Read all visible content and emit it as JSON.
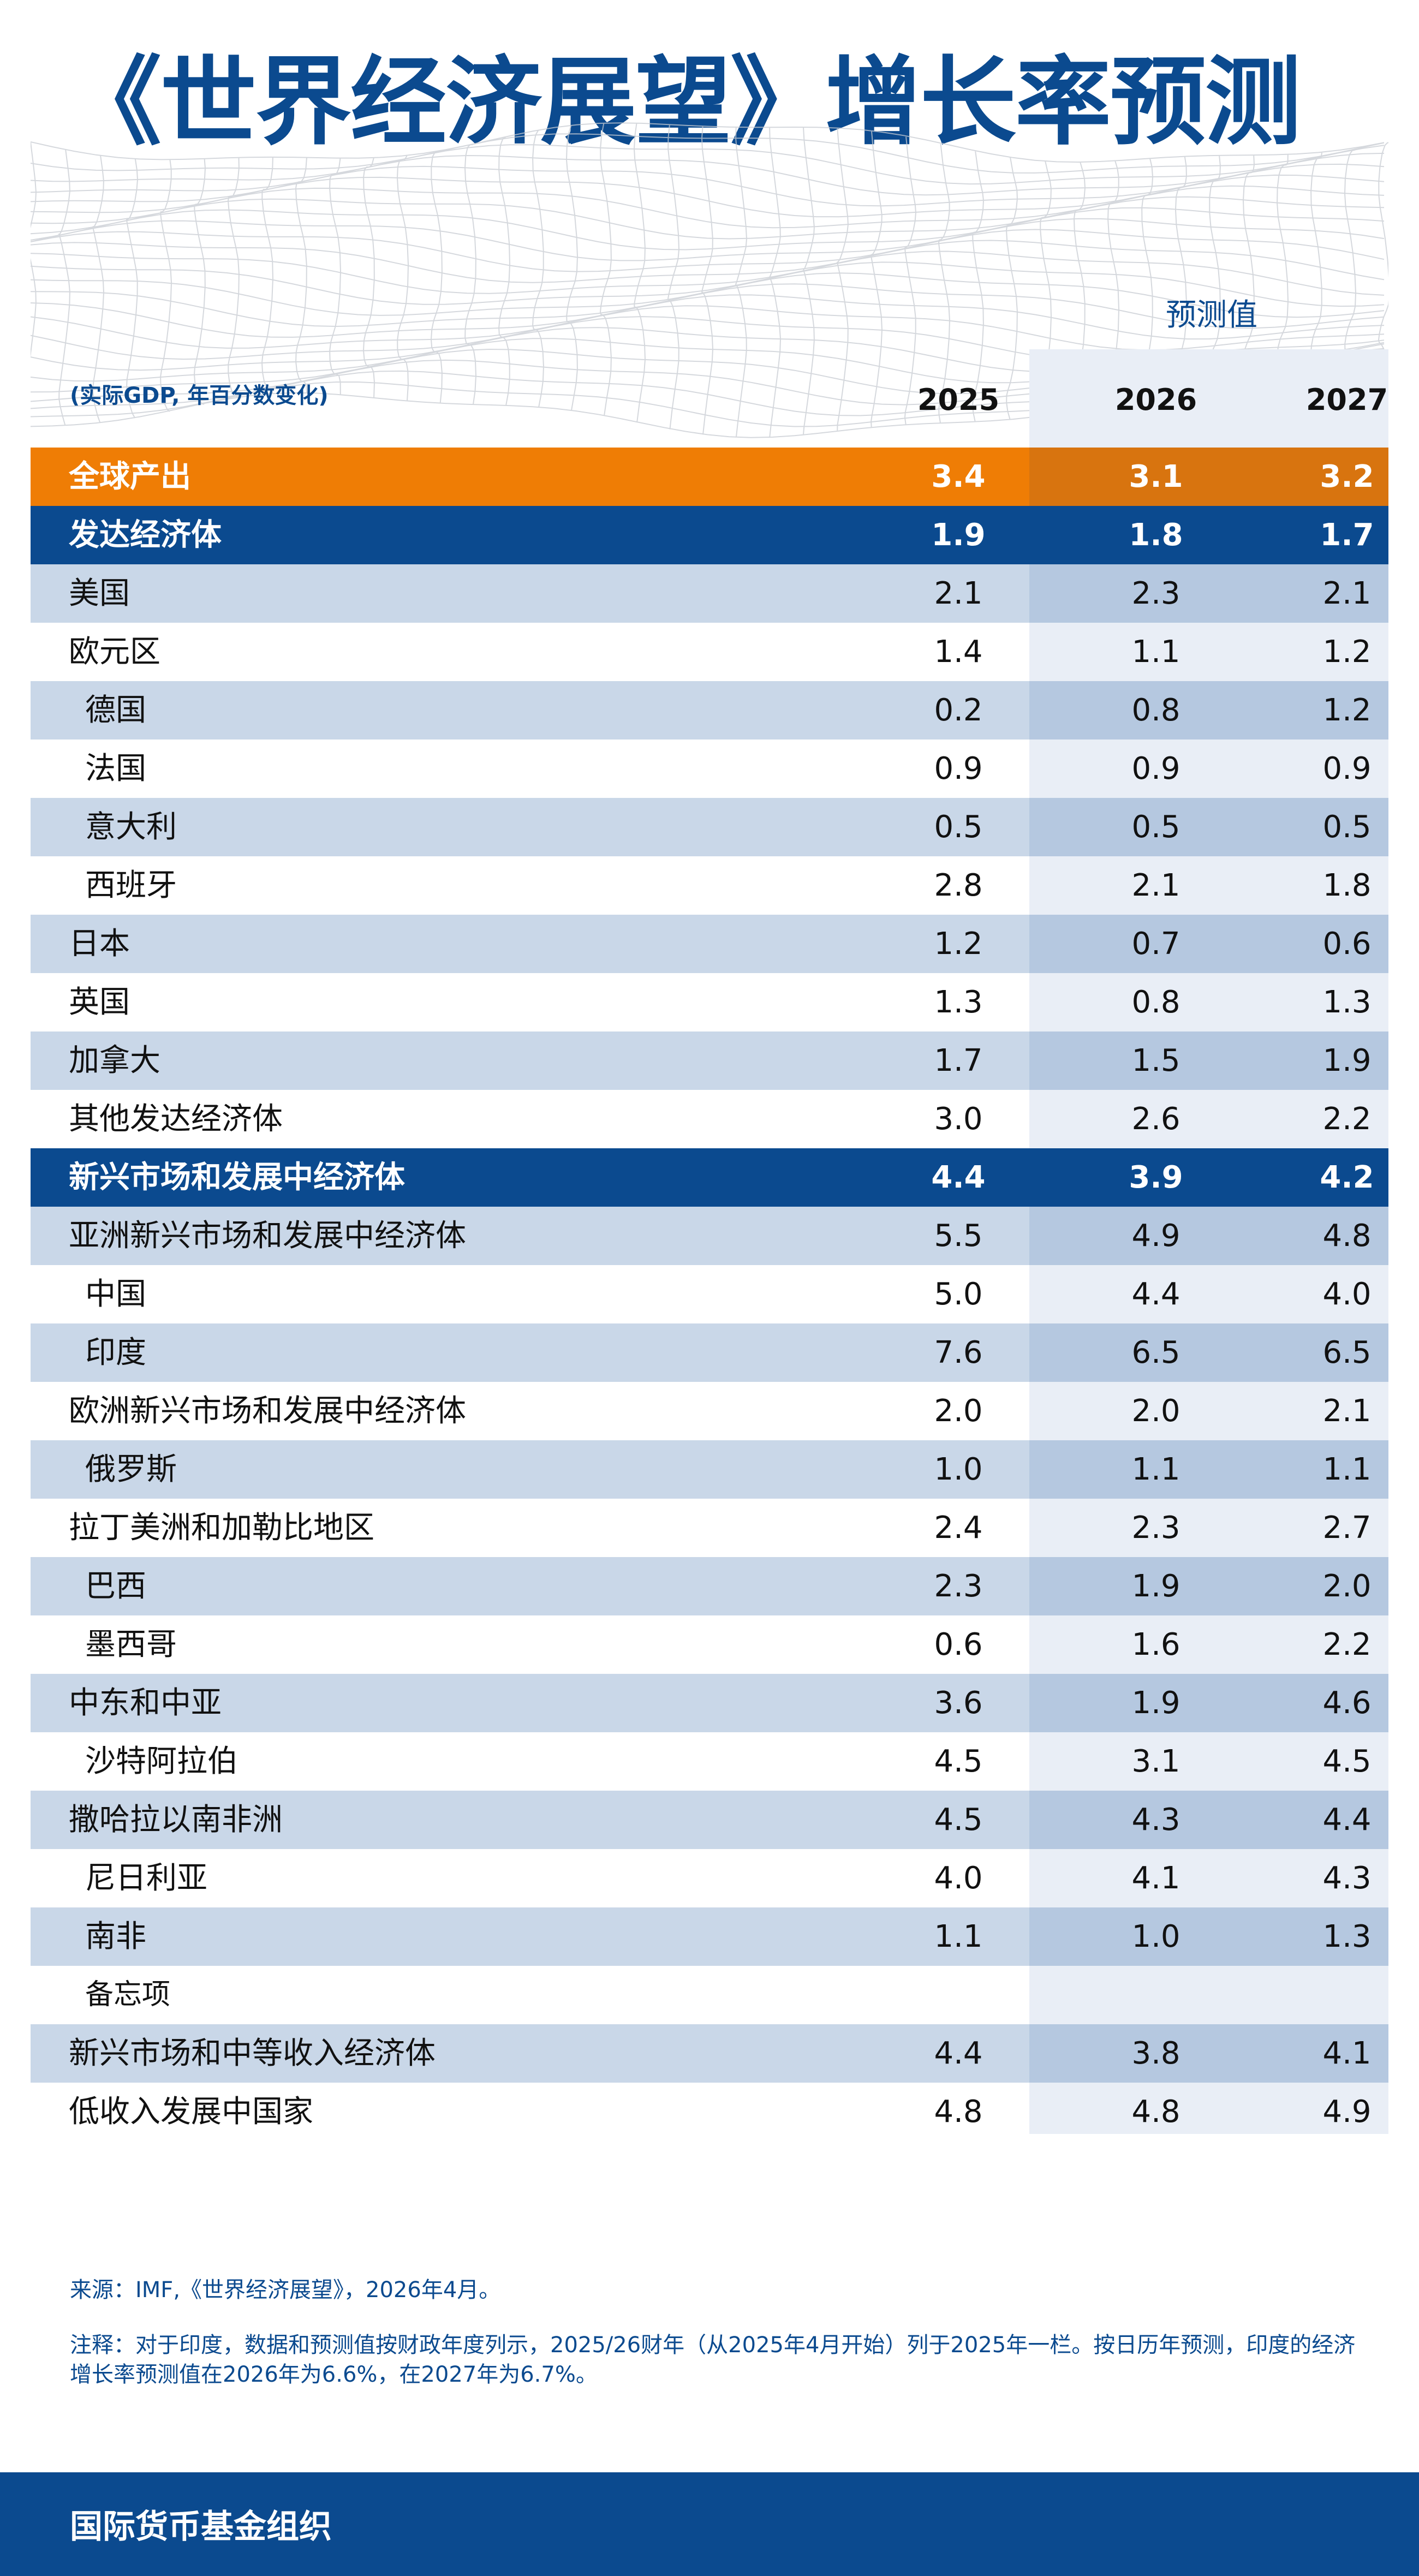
{
  "title": "《世界经济展望》增长率预测",
  "header": {
    "forecast_label": "预测值",
    "unit_note": "(实际GDP, 年百分数变化)",
    "years": [
      "2025",
      "2026",
      "2027"
    ]
  },
  "rows": [
    {
      "label": "全球产出",
      "values": [
        "3.4",
        "3.1",
        "3.2"
      ],
      "kind": "world",
      "indent": 0
    },
    {
      "label": "发达经济体",
      "values": [
        "1.9",
        "1.8",
        "1.7"
      ],
      "kind": "group",
      "indent": 0
    },
    {
      "label": "美国",
      "values": [
        "2.1",
        "2.3",
        "2.1"
      ],
      "kind": "shaded",
      "indent": 0
    },
    {
      "label": "欧元区",
      "values": [
        "1.4",
        "1.1",
        "1.2"
      ],
      "kind": "plain",
      "indent": 0
    },
    {
      "label": "德国",
      "values": [
        "0.2",
        "0.8",
        "1.2"
      ],
      "kind": "shaded",
      "indent": 1
    },
    {
      "label": "法国",
      "values": [
        "0.9",
        "0.9",
        "0.9"
      ],
      "kind": "plain",
      "indent": 1
    },
    {
      "label": "意大利",
      "values": [
        "0.5",
        "0.5",
        "0.5"
      ],
      "kind": "shaded",
      "indent": 1
    },
    {
      "label": "西班牙",
      "values": [
        "2.8",
        "2.1",
        "1.8"
      ],
      "kind": "plain",
      "indent": 1
    },
    {
      "label": "日本",
      "values": [
        "1.2",
        "0.7",
        "0.6"
      ],
      "kind": "shaded",
      "indent": 0
    },
    {
      "label": "英国",
      "values": [
        "1.3",
        "0.8",
        "1.3"
      ],
      "kind": "plain",
      "indent": 0
    },
    {
      "label": "加拿大",
      "values": [
        "1.7",
        "1.5",
        "1.9"
      ],
      "kind": "shaded",
      "indent": 0
    },
    {
      "label": "其他发达经济体",
      "values": [
        "3.0",
        "2.6",
        "2.2"
      ],
      "kind": "plain",
      "indent": 0
    },
    {
      "label": "新兴市场和发展中经济体",
      "values": [
        "4.4",
        "3.9",
        "4.2"
      ],
      "kind": "group",
      "indent": 0
    },
    {
      "label": "亚洲新兴市场和发展中经济体",
      "values": [
        "5.5",
        "4.9",
        "4.8"
      ],
      "kind": "shaded",
      "indent": 0
    },
    {
      "label": "中国",
      "values": [
        "5.0",
        "4.4",
        "4.0"
      ],
      "kind": "plain",
      "indent": 1
    },
    {
      "label": "印度",
      "values": [
        "7.6",
        "6.5",
        "6.5"
      ],
      "kind": "shaded",
      "indent": 1
    },
    {
      "label": "欧洲新兴市场和发展中经济体",
      "values": [
        "2.0",
        "2.0",
        "2.1"
      ],
      "kind": "plain",
      "indent": 0
    },
    {
      "label": "俄罗斯",
      "values": [
        "1.0",
        "1.1",
        "1.1"
      ],
      "kind": "shaded",
      "indent": 1
    },
    {
      "label": "拉丁美洲和加勒比地区",
      "values": [
        "2.4",
        "2.3",
        "2.7"
      ],
      "kind": "plain",
      "indent": 0
    },
    {
      "label": "巴西",
      "values": [
        "2.3",
        "1.9",
        "2.0"
      ],
      "kind": "shaded",
      "indent": 1
    },
    {
      "label": "墨西哥",
      "values": [
        "0.6",
        "1.6",
        "2.2"
      ],
      "kind": "plain",
      "indent": 1
    },
    {
      "label": "中东和中亚",
      "values": [
        "3.6",
        "1.9",
        "4.6"
      ],
      "kind": "shaded",
      "indent": 0
    },
    {
      "label": "沙特阿拉伯",
      "values": [
        "4.5",
        "3.1",
        "4.5"
      ],
      "kind": "plain",
      "indent": 1
    },
    {
      "label": "撒哈拉以南非洲",
      "values": [
        "4.5",
        "4.3",
        "4.4"
      ],
      "kind": "shaded",
      "indent": 0
    },
    {
      "label": "尼日利亚",
      "values": [
        "4.0",
        "4.1",
        "4.3"
      ],
      "kind": "plain",
      "indent": 1
    },
    {
      "label": "南非",
      "values": [
        "1.1",
        "1.0",
        "1.3"
      ],
      "kind": "shaded",
      "indent": 1
    },
    {
      "label": "备忘项",
      "values": [
        "",
        "",
        ""
      ],
      "kind": "memo",
      "indent": 1
    },
    {
      "label": "新兴市场和中等收入经济体",
      "values": [
        "4.4",
        "3.8",
        "4.1"
      ],
      "kind": "shaded",
      "indent": 0
    },
    {
      "label": "低收入发展中国家",
      "values": [
        "4.8",
        "4.8",
        "4.9"
      ],
      "kind": "plain",
      "indent": 0
    }
  ],
  "footer": {
    "source": "来源：IMF,《世界经济展望》，2026年4月。",
    "note": "注释：对于印度，数据和预测值按财政年度列示，2025/26财年（从2025年4月开始）列于2025年一栏。按日历年预测，印度的经济增长率预测值在2026年为6.6%，在2027年为6.7%。",
    "organization": "国际货币基金组织"
  },
  "colors": {
    "brand_blue": "#0b4a8f",
    "highlight_orange": "#ef7d05",
    "row_shade": "#c9d7e8"
  }
}
